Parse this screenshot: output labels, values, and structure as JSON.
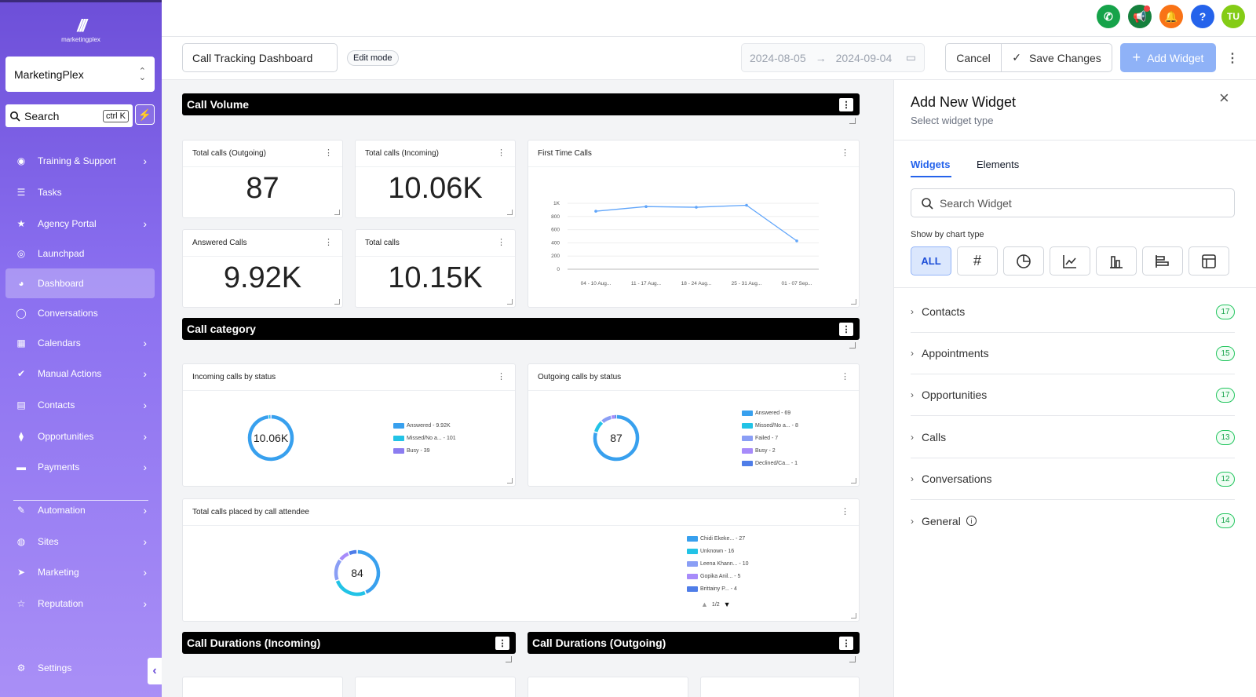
{
  "brand": {
    "logo_text": "marketingplex",
    "account": "MarketingPlex"
  },
  "sidebar": {
    "search_label": "Search",
    "search_shortcut": "ctrl K",
    "items": [
      {
        "label": "Training & Support",
        "icon": "help-circle-icon",
        "chevron": true
      },
      {
        "label": "Tasks",
        "icon": "list-icon",
        "chevron": false
      },
      {
        "label": "Agency Portal",
        "icon": "star-icon",
        "chevron": true
      },
      {
        "label": "Launchpad",
        "icon": "rocket-icon",
        "chevron": false
      },
      {
        "label": "Dashboard",
        "icon": "dashboard-icon",
        "chevron": false,
        "active": true
      },
      {
        "label": "Conversations",
        "icon": "chat-icon",
        "chevron": false
      },
      {
        "label": "Calendars",
        "icon": "calendar-icon",
        "chevron": true
      },
      {
        "label": "Manual Actions",
        "icon": "check-circle-icon",
        "chevron": true
      },
      {
        "label": "Contacts",
        "icon": "contact-book-icon",
        "chevron": true
      },
      {
        "label": "Opportunities",
        "icon": "funnel-icon",
        "chevron": true
      },
      {
        "label": "Payments",
        "icon": "credit-card-icon",
        "chevron": true
      },
      {
        "label": "Automation",
        "icon": "magic-wand-icon",
        "chevron": true
      },
      {
        "label": "Sites",
        "icon": "globe-icon",
        "chevron": true
      },
      {
        "label": "Marketing",
        "icon": "send-icon",
        "chevron": true
      },
      {
        "label": "Reputation",
        "icon": "star-outline-icon",
        "chevron": true
      }
    ],
    "settings_label": "Settings"
  },
  "topbar": {
    "avatar_initials": "TU"
  },
  "header": {
    "dashboard_name": "Call Tracking Dashboard",
    "edit_mode": "Edit mode",
    "date_from": "2024-08-05",
    "date_to": "2024-09-04",
    "cancel": "Cancel",
    "save": "Save Changes",
    "add_widget": "Add Widget"
  },
  "sections": {
    "call_volume": "Call Volume",
    "call_category": "Call category",
    "durations_incoming": "Call Durations (Incoming)",
    "durations_outgoing": "Call Durations (Outgoing)"
  },
  "kpis": [
    {
      "title": "Total calls (Outgoing)",
      "value": "87"
    },
    {
      "title": "Total calls (Incoming)",
      "value": "10.06K"
    },
    {
      "title": "Answered Calls",
      "value": "9.92K"
    },
    {
      "title": "Total calls",
      "value": "10.15K"
    }
  ],
  "first_time_calls": {
    "title": "First Time Calls"
  },
  "incoming_status": {
    "title": "Incoming calls by status",
    "center": "10.06K",
    "legend": [
      "Answered - 9.92K",
      "Missed/No a... - 101",
      "Busy - 39"
    ]
  },
  "outgoing_status": {
    "title": "Outgoing calls by status",
    "center": "87",
    "legend": [
      "Answered - 69",
      "Missed/No a... - 8",
      "Failed - 7",
      "Busy - 2",
      "Declined/Ca... - 1"
    ]
  },
  "attendee": {
    "title": "Total calls placed by call attendee",
    "center": "84",
    "legend": [
      "Chidi Ekeke... - 27",
      "Unknown - 16",
      "Leena Khann... - 10",
      "Gopika Anil... - 5",
      "Brittainy P... - 4"
    ],
    "pager": "1/2"
  },
  "panel": {
    "title": "Add New Widget",
    "subtitle": "Select widget type",
    "tab_widgets": "Widgets",
    "tab_elements": "Elements",
    "search_placeholder": "Search Widget",
    "chart_type_label": "Show by chart type",
    "chart_all": "ALL",
    "categories": [
      {
        "label": "Contacts",
        "count": "17"
      },
      {
        "label": "Appointments",
        "count": "15"
      },
      {
        "label": "Opportunities",
        "count": "17"
      },
      {
        "label": "Calls",
        "count": "13"
      },
      {
        "label": "Conversations",
        "count": "12"
      },
      {
        "label": "General",
        "count": "14"
      }
    ]
  },
  "colors": {
    "accent": "#2563eb",
    "sidebar": "#7c5fe6",
    "badge": "#22c55e"
  },
  "chart_data": [
    {
      "type": "line",
      "title": "First Time Calls",
      "categories": [
        "04 - 10 Aug...",
        "11 - 17 Aug...",
        "18 - 24 Aug...",
        "25 - 31 Aug...",
        "01 - 07 Sep..."
      ],
      "values": [
        880,
        950,
        940,
        970,
        430
      ],
      "ylim": [
        0,
        1000
      ],
      "yticks": [
        "0",
        "200",
        "400",
        "600",
        "800",
        "1K"
      ]
    },
    {
      "type": "pie",
      "title": "Incoming calls by status",
      "labels": [
        "Answered",
        "Missed/No a...",
        "Busy"
      ],
      "values": [
        9920,
        101,
        39
      ],
      "colors": [
        "#38a0ee",
        "#22c3e6",
        "#8b7cf0"
      ]
    },
    {
      "type": "pie",
      "title": "Outgoing calls by status",
      "labels": [
        "Answered",
        "Missed/No a...",
        "Failed",
        "Busy",
        "Declined/Ca..."
      ],
      "values": [
        69,
        8,
        7,
        2,
        1
      ],
      "colors": [
        "#38a0ee",
        "#22c3e6",
        "#8a9ef5",
        "#a78bfa",
        "#4f7de8"
      ]
    },
    {
      "type": "pie",
      "title": "Total calls placed by call attendee",
      "labels": [
        "Chidi Ekeke...",
        "Unknown",
        "Leena Khann...",
        "Gopika Anil...",
        "Brittainy P..."
      ],
      "values": [
        27,
        16,
        10,
        5,
        4
      ],
      "colors": [
        "#38a0ee",
        "#22c3e6",
        "#8a9ef5",
        "#a78bfa",
        "#4f7de8"
      ]
    }
  ]
}
